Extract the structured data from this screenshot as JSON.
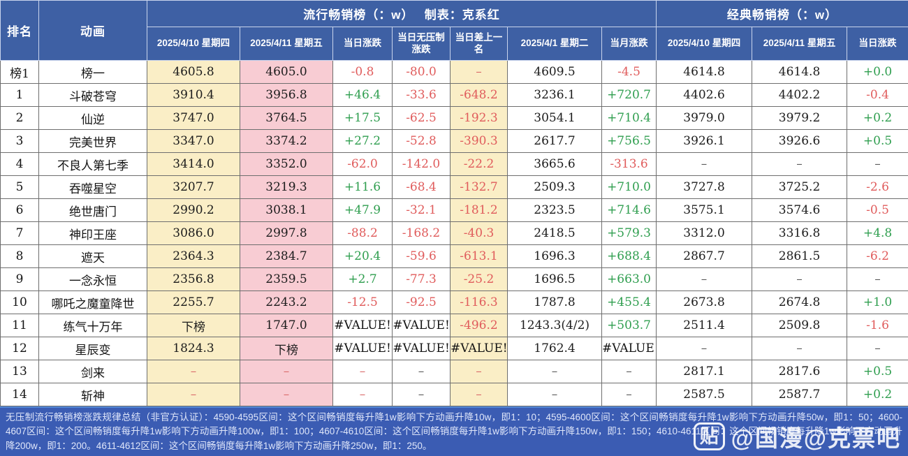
{
  "chart_data": {
    "type": "table",
    "groups": {
      "popular": "流行畅销榜（：w）　 制表：克系红",
      "classic": "经典畅销榜（：w）"
    },
    "headers": {
      "rank": "排名",
      "anime": "动画",
      "popular": [
        "2025/4/10 星期四",
        "2025/4/11 星期五",
        "当日涨跌",
        "当日无压制涨跌",
        "当日差上一名",
        "2025/4/1 星期二",
        "当月涨跌"
      ],
      "classic": [
        "2025/4/10 星期四",
        "2025/4/11 星期五",
        "当日涨跌"
      ]
    },
    "rows": [
      {
        "rank": "榜1",
        "anime": "榜一",
        "values": [
          "4605.8",
          "4605.0",
          "-0.8",
          "-80.0",
          "–",
          "4609.5",
          "-4.5",
          "4614.8",
          "4614.8",
          "+0.0"
        ]
      },
      {
        "rank": "1",
        "anime": "斗破苍穹",
        "values": [
          "3910.4",
          "3956.8",
          "+46.4",
          "-33.6",
          "-648.2",
          "3236.1",
          "+720.7",
          "4402.6",
          "4402.2",
          "-0.4"
        ]
      },
      {
        "rank": "2",
        "anime": "仙逆",
        "values": [
          "3747.0",
          "3764.5",
          "+17.5",
          "-62.5",
          "-192.3",
          "3054.1",
          "+710.4",
          "3979.0",
          "3979.2",
          "+0.2"
        ]
      },
      {
        "rank": "3",
        "anime": "完美世界",
        "values": [
          "3347.0",
          "3374.2",
          "+27.2",
          "-52.8",
          "-390.3",
          "2617.7",
          "+756.5",
          "3926.1",
          "3926.6",
          "+0.5"
        ]
      },
      {
        "rank": "4",
        "anime": "不良人第七季",
        "values": [
          "3414.0",
          "3352.0",
          "-62.0",
          "-142.0",
          "-22.2",
          "3665.6",
          "-313.6",
          "–",
          "–",
          "–"
        ]
      },
      {
        "rank": "5",
        "anime": "吞噬星空",
        "values": [
          "3207.7",
          "3219.3",
          "+11.6",
          "-68.4",
          "-132.7",
          "2509.3",
          "+710.0",
          "3727.8",
          "3725.2",
          "-2.6"
        ]
      },
      {
        "rank": "6",
        "anime": "绝世唐门",
        "values": [
          "2990.2",
          "3038.1",
          "+47.9",
          "-32.1",
          "-181.2",
          "2323.5",
          "+714.6",
          "3575.1",
          "3574.6",
          "-0.5"
        ]
      },
      {
        "rank": "7",
        "anime": "神印王座",
        "values": [
          "3086.0",
          "2997.8",
          "-88.2",
          "-168.2",
          "-40.3",
          "2418.5",
          "+579.3",
          "3312.0",
          "3316.8",
          "+4.8"
        ]
      },
      {
        "rank": "8",
        "anime": "遮天",
        "values": [
          "2364.3",
          "2384.7",
          "+20.4",
          "-59.6",
          "-613.1",
          "1696.3",
          "+688.4",
          "2867.7",
          "2861.5",
          "-6.2"
        ]
      },
      {
        "rank": "9",
        "anime": "一念永恒",
        "values": [
          "2356.8",
          "2359.5",
          "+2.7",
          "-77.3",
          "-25.2",
          "1696.5",
          "+663.0",
          "–",
          "–",
          "–"
        ]
      },
      {
        "rank": "10",
        "anime": "哪吒之魔童降世",
        "values": [
          "2255.7",
          "2243.2",
          "-12.5",
          "-92.5",
          "-116.3",
          "1787.8",
          "+455.4",
          "2673.8",
          "2674.8",
          "+1.0"
        ]
      },
      {
        "rank": "11",
        "anime": "练气十万年",
        "values": [
          "下榜",
          "1747.0",
          "#VALUE!",
          "#VALUE!",
          "-496.2",
          "1243.3(4/2)",
          "+503.7",
          "2511.4",
          "2509.8",
          "-1.6"
        ]
      },
      {
        "rank": "12",
        "anime": "星辰变",
        "values": [
          "1824.3",
          "下榜",
          "#VALUE!",
          "#VALUE!",
          "#VALUE!",
          "1762.4",
          "#VALUE!",
          "–",
          "–",
          "–"
        ]
      },
      {
        "rank": "13",
        "anime": "剑来",
        "values": [
          "–",
          "–",
          "–",
          "–",
          "–",
          "–",
          "–",
          "2817.1",
          "2817.6",
          "+0.5"
        ]
      },
      {
        "rank": "14",
        "anime": "斩神",
        "values": [
          "–",
          "–",
          "–",
          "–",
          "–",
          "–",
          "–",
          "2587.5",
          "2587.7",
          "+0.2"
        ]
      }
    ]
  },
  "footer": {
    "note": "无压制流行畅销榜涨跌规律总结（非官方认证）：4590-4595区间：这个区间畅销度每升降1w影响下方动画升降10w，即1：10；4595-4600区间：这个区间畅销度每升降1w影响下方动画升降50w，即1：50；4600-4607区间：这个区间畅销度每升降1w影响下方动画升降100w，即1：100；4607-4610区间：这个区间畅销度每升降1w影响下方动画升降150w，即1：150；4610-4611区间：这个区间畅销度每升降1w影响下方动画升降200w，即1：200。4611-4612区间：这个区间畅销度每升降1w影响下方动画升降250w，即1：250。"
  },
  "watermark": {
    "logo": "贴",
    "text": "@国漫@克票吧"
  },
  "colors": {
    "header_blue": "#3e60a4",
    "footer_blue": "#3b5cb3",
    "column_yellow": "#faeec6",
    "column_pink": "#f8ccd3",
    "positive_green": "#2f9e4f",
    "negative_red": "#e05c5c"
  }
}
